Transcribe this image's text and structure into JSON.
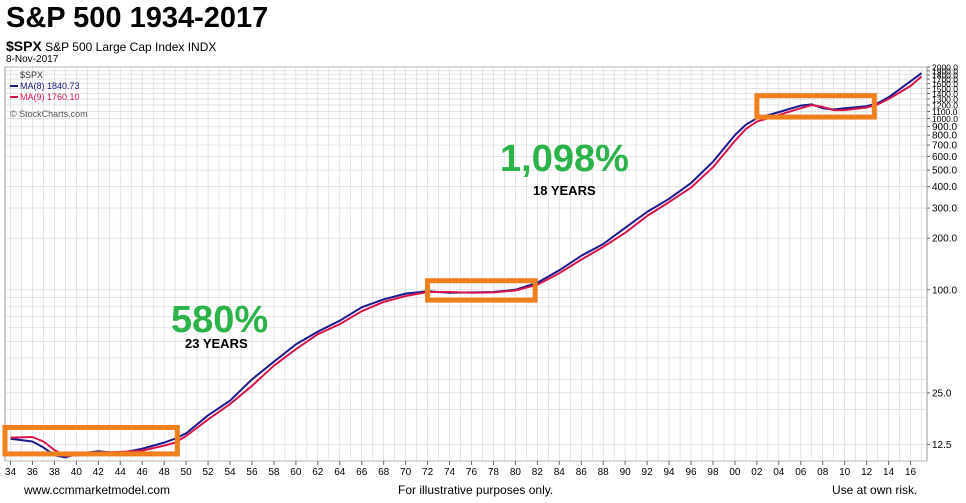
{
  "header": {
    "title": "S&P 500 1934-2017",
    "symbol": "$SPX",
    "index_name": "S&P 500 Large Cap Index",
    "exchange": "INDX",
    "date": "8-Nov-2017"
  },
  "legend": {
    "symbol_label": "$SPX",
    "ma8_label": "MA(8) 1840.73",
    "ma9_label": "MA(9) 1760.10",
    "source": "© StockCharts.com"
  },
  "annotations": {
    "gain1_value": "580%",
    "gain1_years": "23 YEARS",
    "gain2_value": "1,098%",
    "gain2_years": "18 YEARS"
  },
  "footer": {
    "website": "www.ccmmarketmodel.com",
    "disclaimer": "For illustrative purposes only.",
    "risk": "Use at own risk."
  },
  "colors": {
    "ma8": "#1a1a8c",
    "ma9": "#d6154a",
    "box": "#f07f1e",
    "gain_text": "#2bb34a",
    "grid": "#d4d4d4"
  },
  "chart_data": {
    "type": "line",
    "title": "S&P 500 1934-2017",
    "yscale": "log",
    "ylim": [
      10,
      2000
    ],
    "xlim": [
      1933.5,
      2017.5
    ],
    "x_tick_labels": [
      "34",
      "36",
      "38",
      "40",
      "42",
      "44",
      "46",
      "48",
      "50",
      "52",
      "54",
      "56",
      "58",
      "60",
      "62",
      "64",
      "66",
      "68",
      "70",
      "72",
      "74",
      "76",
      "78",
      "80",
      "82",
      "84",
      "86",
      "88",
      "90",
      "92",
      "94",
      "96",
      "98",
      "00",
      "02",
      "04",
      "06",
      "08",
      "10",
      "12",
      "14",
      "16"
    ],
    "y_tick_labels": [
      "2000.0",
      "1900.0",
      "1800.0",
      "1700.0",
      "1600.0",
      "1500.0",
      "1400.0",
      "1300.0",
      "1200.0",
      "1100.0",
      "1000.0",
      "900.0",
      "800.0",
      "700.0",
      "600.0",
      "500.0",
      "400.0",
      "300.0",
      "200.0",
      "100.0",
      "25.0",
      "12.5"
    ],
    "y_tick_values": [
      2000,
      1900,
      1800,
      1700,
      1600,
      1500,
      1400,
      1300,
      1200,
      1100,
      1000,
      900,
      800,
      700,
      600,
      500,
      400,
      300,
      200,
      100,
      25,
      12.5
    ],
    "series": [
      {
        "name": "MA(8)",
        "x": [
          1934,
          1936,
          1937,
          1938,
          1939,
          1940,
          1942,
          1944,
          1946,
          1948,
          1949,
          1950,
          1952,
          1954,
          1956,
          1958,
          1960,
          1962,
          1964,
          1966,
          1968,
          1970,
          1972,
          1974,
          1976,
          1978,
          1980,
          1982,
          1984,
          1986,
          1988,
          1990,
          1992,
          1994,
          1996,
          1998,
          2000,
          2001,
          2002,
          2004,
          2006,
          2007,
          2008,
          2009,
          2010,
          2012,
          2013,
          2014,
          2016,
          2017
        ],
        "values": [
          13.5,
          13.0,
          12.0,
          10.8,
          10.5,
          11.0,
          11.4,
          11.1,
          11.8,
          12.8,
          13.5,
          14.5,
          18.5,
          22.5,
          30,
          38,
          48,
          57,
          66,
          79,
          88,
          95,
          98,
          96,
          96.5,
          97,
          100,
          110,
          130,
          158,
          185,
          230,
          285,
          340,
          420,
          560,
          800,
          920,
          1005,
          1090,
          1190,
          1210,
          1150,
          1130,
          1150,
          1180,
          1230,
          1330,
          1650,
          1840.73
        ]
      },
      {
        "name": "MA(9)",
        "x": [
          1934,
          1936,
          1937,
          1938,
          1939,
          1940,
          1942,
          1944,
          1946,
          1948,
          1949,
          1950,
          1952,
          1954,
          1956,
          1958,
          1960,
          1962,
          1964,
          1966,
          1968,
          1970,
          1972,
          1974,
          1976,
          1978,
          1980,
          1982,
          1984,
          1986,
          1988,
          1990,
          1992,
          1994,
          1996,
          1998,
          2000,
          2001,
          2002,
          2004,
          2006,
          2007,
          2008,
          2009,
          2010,
          2012,
          2013,
          2014,
          2016,
          2017
        ],
        "values": [
          13.7,
          13.8,
          13.0,
          11.6,
          10.7,
          10.8,
          11.2,
          11.3,
          11.5,
          12.3,
          12.8,
          14.0,
          17.5,
          21.5,
          27.5,
          36,
          45,
          55,
          63,
          75,
          85,
          92,
          97,
          97,
          96,
          96.5,
          99,
          107,
          125,
          150,
          178,
          215,
          270,
          325,
          395,
          520,
          740,
          870,
          960,
          1050,
          1150,
          1200,
          1170,
          1120,
          1120,
          1160,
          1210,
          1300,
          1550,
          1760.1
        ]
      }
    ],
    "highlight_boxes": [
      {
        "x_range": [
          1933.5,
          1949.2
        ],
        "y_range": [
          11.0,
          15.7
        ]
      },
      {
        "x_range": [
          1972,
          1981.8
        ],
        "y_range": [
          87,
          113
        ]
      },
      {
        "x_range": [
          2002,
          2012.7
        ],
        "y_range": [
          1020,
          1360
        ]
      }
    ]
  }
}
